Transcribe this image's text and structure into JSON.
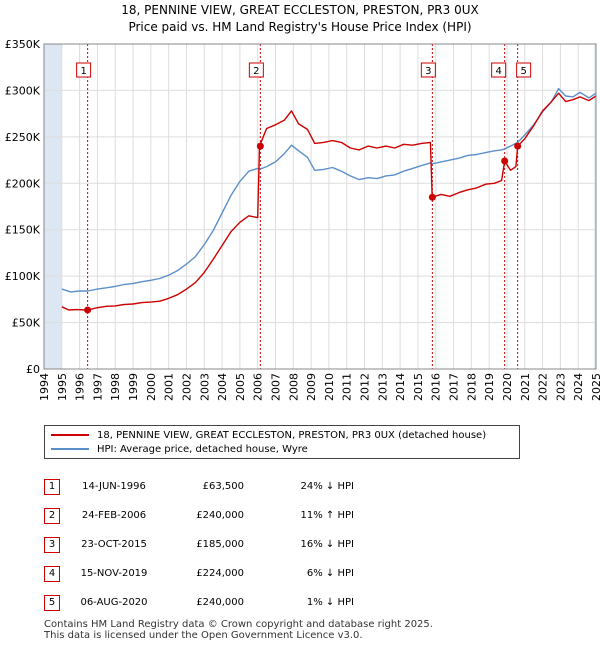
{
  "title_line1": "18, PENNINE VIEW, GREAT ECCLESTON, PRESTON, PR3 0UX",
  "title_line2": "Price paid vs. HM Land Registry's House Price Index (HPI)",
  "chart_data": {
    "type": "line",
    "xlim": [
      1994,
      2025
    ],
    "ylim": [
      0,
      350000
    ],
    "y_ticks": [
      0,
      50000,
      100000,
      150000,
      200000,
      250000,
      300000,
      350000
    ],
    "y_tick_labels": [
      "£0",
      "£50K",
      "£100K",
      "£150K",
      "£200K",
      "£250K",
      "£300K",
      "£350K"
    ],
    "x_tick_labels": [
      "1994",
      "1995",
      "1996",
      "1997",
      "1998",
      "1999",
      "2000",
      "2001",
      "2002",
      "2003",
      "2004",
      "2005",
      "2006",
      "2007",
      "2008",
      "2009",
      "2010",
      "2011",
      "2012",
      "2013",
      "2014",
      "2015",
      "2016",
      "2017",
      "2018",
      "2019",
      "2020",
      "2021",
      "2022",
      "2023",
      "2024",
      "2025"
    ],
    "grid": true,
    "colors": {
      "property": "#cc0000",
      "hpi": "#5b8fc9",
      "shade": "#dde6f3",
      "marker_line": "#cc0000"
    },
    "series": [
      {
        "name": "18, PENNINE VIEW, GREAT ECCLESTON, PRESTON, PR3 0UX (detached house)",
        "points": [
          [
            1995.0,
            67000
          ],
          [
            1995.4,
            63500
          ],
          [
            1995.8,
            64000
          ],
          [
            1996.45,
            63500
          ],
          [
            1997.0,
            66000
          ],
          [
            1997.5,
            67500
          ],
          [
            1998.0,
            68000
          ],
          [
            1998.5,
            69500
          ],
          [
            1999.0,
            70000
          ],
          [
            1999.5,
            71500
          ],
          [
            2000.0,
            72000
          ],
          [
            2000.5,
            73000
          ],
          [
            2001.0,
            76000
          ],
          [
            2001.5,
            80000
          ],
          [
            2002.0,
            86000
          ],
          [
            2002.5,
            93000
          ],
          [
            2003.0,
            104000
          ],
          [
            2003.5,
            118000
          ],
          [
            2004.0,
            133000
          ],
          [
            2004.5,
            148000
          ],
          [
            2005.0,
            158000
          ],
          [
            2005.5,
            165000
          ],
          [
            2006.0,
            163000
          ],
          [
            2006.1,
            240000
          ],
          [
            2006.5,
            259000
          ],
          [
            2007.0,
            263000
          ],
          [
            2007.5,
            268000
          ],
          [
            2007.9,
            278000
          ],
          [
            2008.3,
            264000
          ],
          [
            2008.8,
            258000
          ],
          [
            2009.2,
            243000
          ],
          [
            2009.7,
            244000
          ],
          [
            2010.2,
            246000
          ],
          [
            2010.7,
            244000
          ],
          [
            2011.2,
            238000
          ],
          [
            2011.7,
            236000
          ],
          [
            2012.2,
            240000
          ],
          [
            2012.7,
            238000
          ],
          [
            2013.2,
            240000
          ],
          [
            2013.7,
            238000
          ],
          [
            2014.2,
            242000
          ],
          [
            2014.7,
            241000
          ],
          [
            2015.2,
            243000
          ],
          [
            2015.7,
            244000
          ],
          [
            2015.8,
            185000
          ],
          [
            2016.3,
            188000
          ],
          [
            2016.8,
            186000
          ],
          [
            2017.3,
            190000
          ],
          [
            2017.8,
            193000
          ],
          [
            2018.3,
            195000
          ],
          [
            2018.8,
            199000
          ],
          [
            2019.3,
            200000
          ],
          [
            2019.7,
            203000
          ],
          [
            2019.87,
            224000
          ],
          [
            2020.2,
            214000
          ],
          [
            2020.5,
            218000
          ],
          [
            2020.6,
            240000
          ],
          [
            2021.0,
            248000
          ],
          [
            2021.5,
            262000
          ],
          [
            2022.0,
            278000
          ],
          [
            2022.5,
            288000
          ],
          [
            2022.9,
            297000
          ],
          [
            2023.3,
            288000
          ],
          [
            2023.7,
            290000
          ],
          [
            2024.1,
            293000
          ],
          [
            2024.6,
            289000
          ],
          [
            2025.0,
            294000
          ]
        ]
      },
      {
        "name": "HPI: Average price, detached house, Wyre",
        "points": [
          [
            1995.0,
            86000
          ],
          [
            1995.5,
            83000
          ],
          [
            1996.0,
            84000
          ],
          [
            1996.45,
            84000
          ],
          [
            1997.0,
            86000
          ],
          [
            1997.5,
            87500
          ],
          [
            1998.0,
            89000
          ],
          [
            1998.5,
            91000
          ],
          [
            1999.0,
            92000
          ],
          [
            1999.5,
            94000
          ],
          [
            2000.0,
            95500
          ],
          [
            2000.5,
            97500
          ],
          [
            2001.0,
            101000
          ],
          [
            2001.5,
            106000
          ],
          [
            2002.0,
            113000
          ],
          [
            2002.5,
            121000
          ],
          [
            2003.0,
            134000
          ],
          [
            2003.5,
            149000
          ],
          [
            2004.0,
            168000
          ],
          [
            2004.5,
            187000
          ],
          [
            2005.0,
            202000
          ],
          [
            2005.5,
            213000
          ],
          [
            2006.0,
            216000
          ],
          [
            2006.1,
            215000
          ],
          [
            2006.5,
            218000
          ],
          [
            2007.0,
            223000
          ],
          [
            2007.5,
            232000
          ],
          [
            2007.9,
            241000
          ],
          [
            2008.3,
            235000
          ],
          [
            2008.8,
            228000
          ],
          [
            2009.2,
            214000
          ],
          [
            2009.7,
            215000
          ],
          [
            2010.2,
            217000
          ],
          [
            2010.7,
            213000
          ],
          [
            2011.2,
            208000
          ],
          [
            2011.7,
            204000
          ],
          [
            2012.2,
            206000
          ],
          [
            2012.7,
            205000
          ],
          [
            2013.2,
            208000
          ],
          [
            2013.7,
            209000
          ],
          [
            2014.2,
            213000
          ],
          [
            2014.7,
            216000
          ],
          [
            2015.2,
            219000
          ],
          [
            2015.7,
            222000
          ],
          [
            2015.8,
            221000
          ],
          [
            2016.3,
            223000
          ],
          [
            2016.8,
            225000
          ],
          [
            2017.3,
            227000
          ],
          [
            2017.8,
            230000
          ],
          [
            2018.3,
            231000
          ],
          [
            2018.8,
            233000
          ],
          [
            2019.3,
            235000
          ],
          [
            2019.7,
            236000
          ],
          [
            2019.87,
            237000
          ],
          [
            2020.2,
            240000
          ],
          [
            2020.5,
            243000
          ],
          [
            2020.6,
            244000
          ],
          [
            2021.0,
            252000
          ],
          [
            2021.5,
            263000
          ],
          [
            2022.0,
            277000
          ],
          [
            2022.5,
            288000
          ],
          [
            2022.9,
            302000
          ],
          [
            2023.3,
            294000
          ],
          [
            2023.7,
            293000
          ],
          [
            2024.1,
            298000
          ],
          [
            2024.6,
            292000
          ],
          [
            2025.0,
            297000
          ]
        ]
      }
    ],
    "sales": [
      {
        "num": "1",
        "year": 1996.45,
        "price": 63500
      },
      {
        "num": "2",
        "year": 2006.15,
        "price": 240000
      },
      {
        "num": "3",
        "year": 2015.81,
        "price": 185000
      },
      {
        "num": "4",
        "year": 2019.87,
        "price": 224000
      },
      {
        "num": "5",
        "year": 2020.6,
        "price": 240000
      }
    ]
  },
  "legend": {
    "property": "18, PENNINE VIEW, GREAT ECCLESTON, PRESTON, PR3 0UX (detached house)",
    "hpi": "HPI: Average price, detached house, Wyre"
  },
  "transactions": [
    {
      "num": "1",
      "date": "14-JUN-1996",
      "price": "£63,500",
      "hpi": "24% ↓ HPI"
    },
    {
      "num": "2",
      "date": "24-FEB-2006",
      "price": "£240,000",
      "hpi": "11% ↑ HPI"
    },
    {
      "num": "3",
      "date": "23-OCT-2015",
      "price": "£185,000",
      "hpi": "16% ↓ HPI"
    },
    {
      "num": "4",
      "date": "15-NOV-2019",
      "price": "£224,000",
      "hpi": "6% ↓ HPI"
    },
    {
      "num": "5",
      "date": "06-AUG-2020",
      "price": "£240,000",
      "hpi": "1% ↓ HPI"
    }
  ],
  "footer": {
    "line1": "Contains HM Land Registry data © Crown copyright and database right 2025.",
    "line2": "This data is licensed under the Open Government Licence v3.0."
  }
}
